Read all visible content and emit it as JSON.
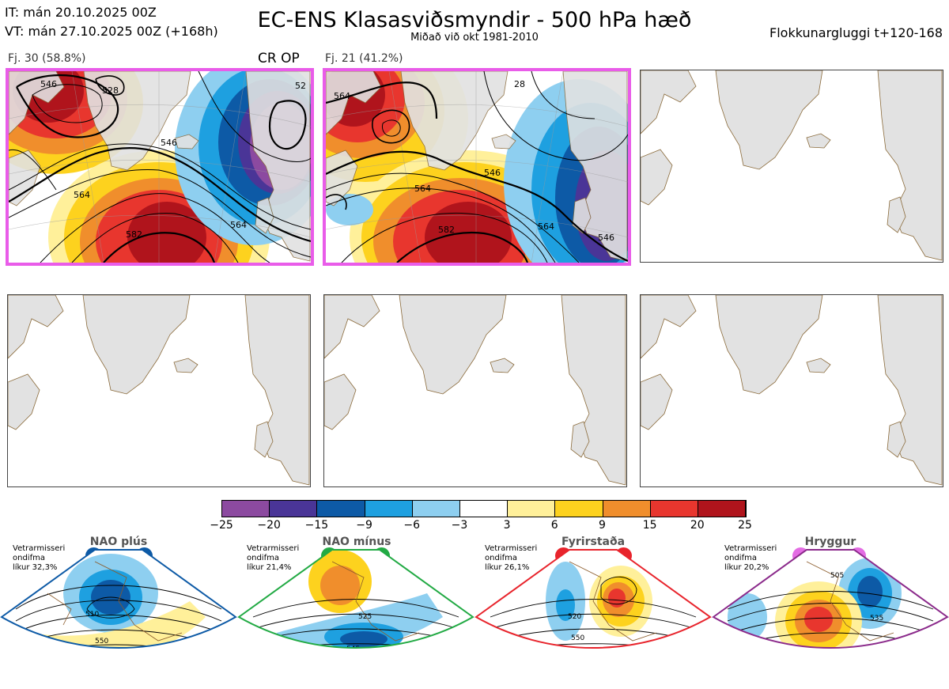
{
  "header": {
    "it_line": "IT: mán 20.10.2025 00Z",
    "vt_line": "VT: mán 27.10.2025 00Z  (+168h)",
    "title": "EC-ENS Klasasviðsmyndir - 500 hPa hæð",
    "subtitle": "Miðað við okt 1981-2010",
    "window": "Flokkunargluggi t+120-168"
  },
  "clusters": [
    {
      "label": "Fj. 30 (58.8%)",
      "tag": "CR OP",
      "contours": [
        "528",
        "546",
        "564",
        "582",
        "546",
        "564",
        "52"
      ]
    },
    {
      "label": "Fj. 21 (41.2%)",
      "tag": "",
      "contours": [
        "564",
        "546",
        "564",
        "582",
        "564",
        "546",
        "28"
      ]
    }
  ],
  "colorbar": {
    "ticks": [
      "−25",
      "−20",
      "−15",
      "−9",
      "−6",
      "−3",
      "3",
      "6",
      "9",
      "15",
      "20",
      "25"
    ],
    "colors": [
      "#8c4aa0",
      "#4a3597",
      "#0d5aa6",
      "#1ea0e0",
      "#8ecff0",
      "#ffffff",
      "#fff09a",
      "#fdd21e",
      "#f08e2c",
      "#e8362e",
      "#b0141c"
    ]
  },
  "regimes": [
    {
      "title": "NAO plús",
      "note": [
        "Vetrarmisseri",
        "ondifma",
        "líkur 32,3%"
      ],
      "color": "#0d5aa6",
      "labels": [
        "510",
        "550"
      ]
    },
    {
      "title": "NAO mínus",
      "note": [
        "Vetrarmisseri",
        "ondifma",
        "líkur 21,4%"
      ],
      "color": "#22aa44",
      "labels": [
        "525",
        "545",
        "565"
      ]
    },
    {
      "title": "Fyrirstaða",
      "note": [
        "Vetrarmisseri",
        "ondifma",
        "líkur 26,1%"
      ],
      "color": "#e8242c",
      "labels": [
        "520",
        "550",
        "560"
      ]
    },
    {
      "title": "Hryggur",
      "note": [
        "Vetrarmisseri",
        "ondifma",
        "líkur 20,2%"
      ],
      "color": "#e36ce3",
      "labels": [
        "505",
        "535",
        "560"
      ]
    }
  ]
}
